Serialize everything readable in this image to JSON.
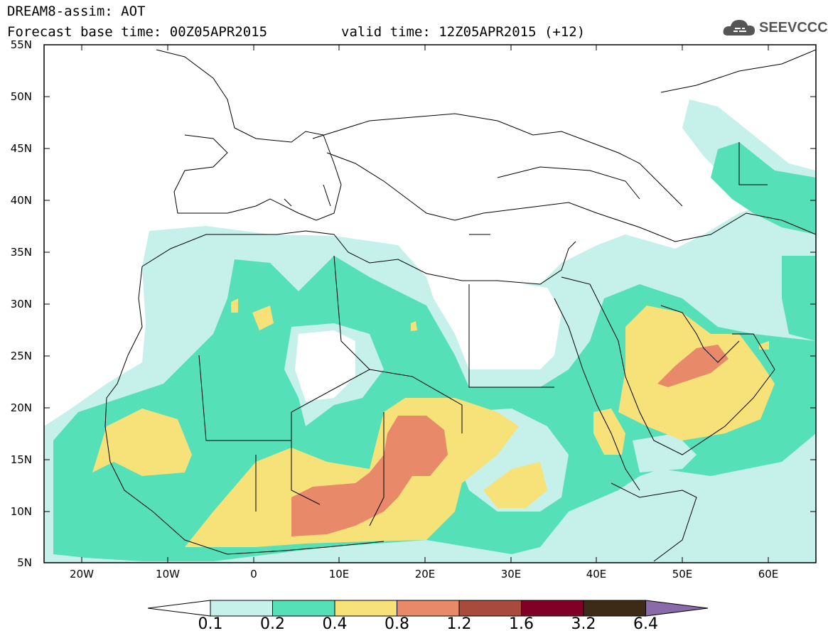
{
  "header": {
    "title_line1": "DREAM8-assim: AOT",
    "title_line2_base": "Forecast base time: 00Z05APR2015",
    "title_line2_valid": "valid time: 12Z05APR2015 (+12)",
    "logo_text": "SEEVCCC"
  },
  "map": {
    "lat_labels": [
      "55N",
      "50N",
      "45N",
      "40N",
      "35N",
      "30N",
      "25N",
      "20N",
      "15N",
      "10N",
      "5N"
    ],
    "lon_labels": [
      "20W",
      "10W",
      "0",
      "10E",
      "20E",
      "30E",
      "40E",
      "50E",
      "60E"
    ],
    "extent": {
      "lon_min": -25,
      "lon_max": 65,
      "lat_min": 5,
      "lat_max": 55
    },
    "variable": "AOT"
  },
  "colorbar": {
    "labels": [
      "0.1",
      "0.2",
      "0.4",
      "0.8",
      "1.2",
      "1.6",
      "3.2",
      "6.4"
    ],
    "colors": [
      "#ffffff",
      "#c6f0ea",
      "#55e0b8",
      "#f7e27a",
      "#e8896a",
      "#a84b3c",
      "#800026",
      "#3d2b18",
      "#8a6aa8"
    ]
  },
  "legend_colors": {
    "aot_0.1_0.2": "#c6f0ea",
    "aot_0.2_0.4": "#55e0b8",
    "aot_0.4_0.8": "#f7e27a",
    "aot_0.8_1.2": "#e8896a"
  }
}
